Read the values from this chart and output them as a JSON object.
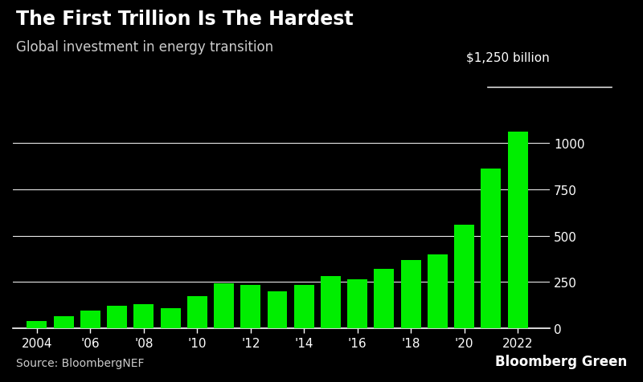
{
  "title": "The First Trillion Is The Hardest",
  "subtitle": "Global investment in energy transition",
  "source": "Source: BloombergNEF",
  "branding": "Bloomberg Green",
  "years": [
    2004,
    2005,
    2006,
    2007,
    2008,
    2009,
    2010,
    2011,
    2012,
    2013,
    2014,
    2015,
    2016,
    2017,
    2018,
    2019,
    2020,
    2021,
    2022
  ],
  "values": [
    40,
    65,
    95,
    120,
    130,
    110,
    175,
    245,
    235,
    200,
    235,
    280,
    265,
    320,
    370,
    400,
    560,
    860,
    1060
  ],
  "bar_color": "#00ee00",
  "bg_color": "#000000",
  "text_color": "#ffffff",
  "axis_label_color": "#cccccc",
  "ylabel_annotation": "$1,250 billion",
  "yticks": [
    0,
    250,
    500,
    750,
    1000
  ],
  "xtick_labels": [
    "2004",
    "'06",
    "'08",
    "'10",
    "'12",
    "'14",
    "'16",
    "'18",
    "'20",
    "2022"
  ],
  "xtick_positions": [
    2004,
    2006,
    2008,
    2010,
    2012,
    2014,
    2016,
    2018,
    2020,
    2022
  ],
  "ylim": [
    0,
    1300
  ],
  "title_fontsize": 17,
  "subtitle_fontsize": 12,
  "tick_fontsize": 11,
  "source_fontsize": 10,
  "branding_fontsize": 12
}
